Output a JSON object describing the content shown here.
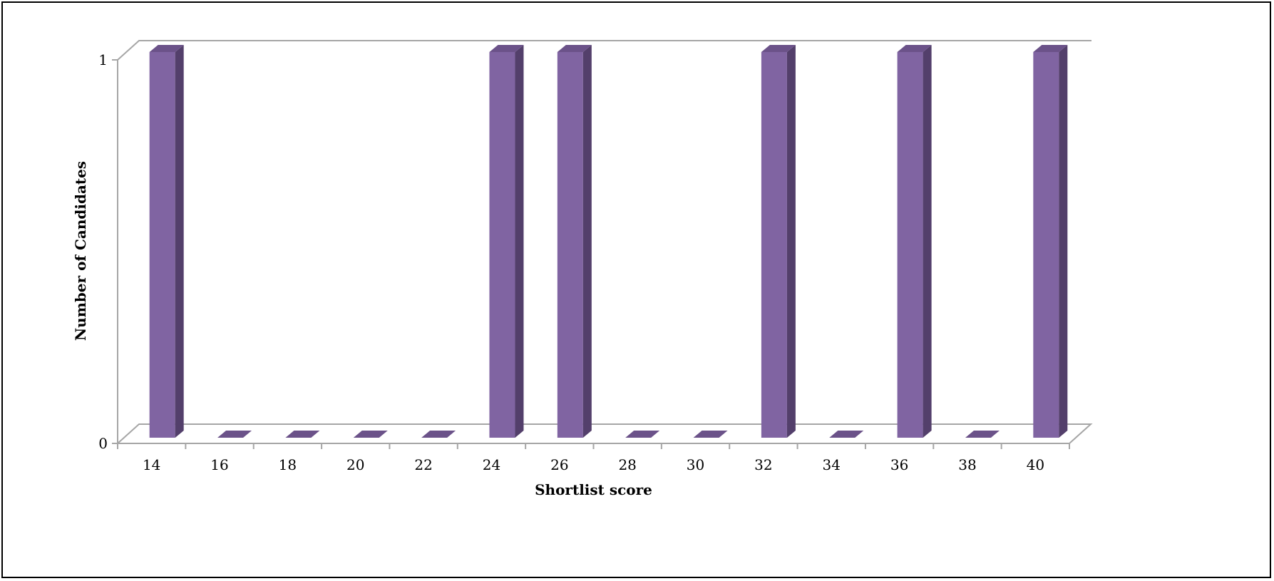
{
  "chart_data": {
    "type": "bar",
    "title": "",
    "xlabel": "Shortlist score",
    "ylabel": "Number of Candidates",
    "categories": [
      "14",
      "16",
      "18",
      "20",
      "22",
      "24",
      "26",
      "28",
      "30",
      "32",
      "34",
      "36",
      "38",
      "40"
    ],
    "values": [
      1,
      0,
      0,
      0,
      0,
      1,
      1,
      0,
      0,
      1,
      0,
      1,
      0,
      1
    ],
    "ylim": [
      0,
      1
    ],
    "yticks": [
      "0",
      "1"
    ],
    "grid": true,
    "legend": "none",
    "style": "3d-column",
    "colors": {
      "bar_front": "#8064a2",
      "bar_side": "#533f6b",
      "bar_top": "#6b5289",
      "axis": "#a6a6a6",
      "frame": "#000000"
    }
  }
}
